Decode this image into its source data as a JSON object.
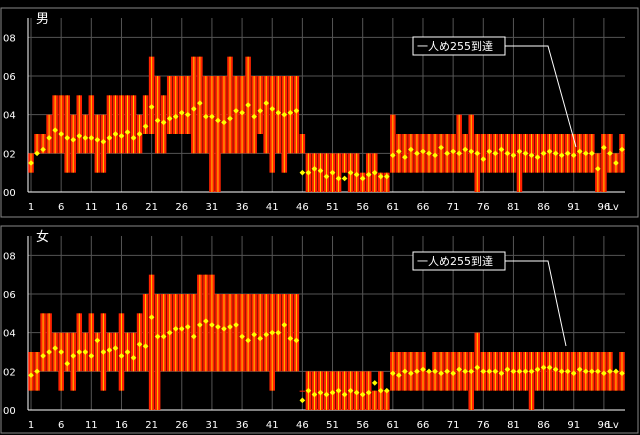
{
  "chart_data": [
    {
      "type": "bar",
      "title": "男",
      "annotation": "一人め255到達",
      "ylim": [
        0,
        0.9
      ],
      "ytick_labels": [
        "00",
        "02",
        "04",
        "06",
        "08"
      ],
      "yticks": [
        0,
        0.2,
        0.4,
        0.6,
        0.8
      ],
      "xtick_labels": [
        "1",
        "6",
        "11",
        "16",
        "21",
        "26",
        "31",
        "36",
        "41",
        "46",
        "51",
        "56",
        "61",
        "66",
        "71",
        "76",
        "81",
        "86",
        "91",
        "96",
        "Lv"
      ],
      "xlim": [
        1,
        99
      ],
      "grid": true,
      "low": [
        0.1,
        0.2,
        0.2,
        0.2,
        0.2,
        0.2,
        0.1,
        0.1,
        0.2,
        0.2,
        0.2,
        0.1,
        0.1,
        0.2,
        0.2,
        0.2,
        0.2,
        0.2,
        0.2,
        0.3,
        0.3,
        0.2,
        0.2,
        0.3,
        0.3,
        0.3,
        0.3,
        0.2,
        0.2,
        0.2,
        0,
        0,
        0.2,
        0.2,
        0.2,
        0.2,
        0.2,
        0.2,
        0.3,
        0.2,
        0.1,
        0.2,
        0.1,
        0.2,
        0.2,
        0.2,
        0,
        0,
        0,
        0,
        0,
        0,
        0.1,
        0,
        0,
        0,
        0,
        0,
        0,
        0,
        0.1,
        0.1,
        0.1,
        0.1,
        0.1,
        0.1,
        0.1,
        0.1,
        0.1,
        0.1,
        0.1,
        0.1,
        0.1,
        0.1,
        0,
        0.1,
        0.1,
        0.1,
        0.1,
        0.1,
        0.1,
        0,
        0.1,
        0.1,
        0.1,
        0.1,
        0.1,
        0.1,
        0.1,
        0.1,
        0.1,
        0.1,
        0.1,
        0.1,
        0,
        0,
        0.1,
        0.1,
        0.1
      ],
      "high": [
        0.2,
        0.3,
        0.3,
        0.4,
        0.5,
        0.5,
        0.5,
        0.4,
        0.5,
        0.4,
        0.5,
        0.4,
        0.4,
        0.5,
        0.5,
        0.5,
        0.5,
        0.5,
        0.4,
        0.5,
        0.7,
        0.6,
        0.5,
        0.6,
        0.6,
        0.6,
        0.6,
        0.7,
        0.7,
        0.6,
        0.6,
        0.6,
        0.6,
        0.7,
        0.6,
        0.6,
        0.7,
        0.6,
        0.6,
        0.6,
        0.6,
        0.6,
        0.6,
        0.6,
        0.6,
        0.3,
        0.2,
        0.2,
        0.2,
        0.2,
        0.2,
        0.2,
        0.2,
        0.2,
        0.2,
        0.1,
        0.2,
        0.2,
        0.1,
        0.1,
        0.4,
        0.3,
        0.3,
        0.3,
        0.3,
        0.3,
        0.3,
        0.3,
        0.3,
        0.3,
        0.3,
        0.4,
        0.3,
        0.4,
        0.3,
        0.3,
        0.3,
        0.3,
        0.3,
        0.3,
        0.3,
        0.3,
        0.3,
        0.3,
        0.3,
        0.3,
        0.3,
        0.3,
        0.3,
        0.3,
        0.3,
        0.3,
        0.3,
        0.3,
        0.2,
        0.3,
        0.3,
        0.2,
        0.3
      ],
      "mean": [
        0.15,
        0.2,
        0.22,
        0.28,
        0.32,
        0.3,
        0.28,
        0.27,
        0.29,
        0.28,
        0.28,
        0.27,
        0.26,
        0.28,
        0.3,
        0.29,
        0.31,
        0.28,
        0.3,
        0.34,
        0.44,
        0.37,
        0.36,
        0.38,
        0.39,
        0.41,
        0.4,
        0.43,
        0.46,
        0.39,
        0.39,
        0.37,
        0.36,
        0.38,
        0.42,
        0.41,
        0.45,
        0.39,
        0.42,
        0.46,
        0.43,
        0.41,
        0.4,
        0.41,
        0.42,
        0.1,
        0.1,
        0.12,
        0.11,
        0.08,
        0.1,
        0.07,
        0.07,
        0.1,
        0.09,
        0.07,
        0.09,
        0.1,
        0.08,
        0.08,
        0.19,
        0.21,
        0.18,
        0.22,
        0.2,
        0.21,
        0.2,
        0.19,
        0.23,
        0.2,
        0.21,
        0.2,
        0.22,
        0.21,
        0.2,
        0.17,
        0.21,
        0.2,
        0.22,
        0.2,
        0.19,
        0.21,
        0.2,
        0.19,
        0.18,
        0.2,
        0.21,
        0.2,
        0.19,
        0.2,
        0.19,
        0.21,
        0.2,
        0.2,
        0.12,
        0.23,
        0.2,
        0.15,
        0.22
      ]
    },
    {
      "type": "bar",
      "title": "女",
      "annotation": "一人め255到達",
      "ylim": [
        0,
        0.9
      ],
      "ytick_labels": [
        "00",
        "02",
        "04",
        "06",
        "08"
      ],
      "yticks": [
        0,
        0.2,
        0.4,
        0.6,
        0.8
      ],
      "xtick_labels": [
        "1",
        "6",
        "11",
        "16",
        "21",
        "26",
        "31",
        "36",
        "41",
        "46",
        "51",
        "56",
        "61",
        "66",
        "71",
        "76",
        "81",
        "86",
        "91",
        "96",
        "Lv"
      ],
      "xlim": [
        1,
        99
      ],
      "grid": true,
      "low": [
        0.1,
        0.1,
        0.2,
        0.2,
        0.2,
        0.1,
        0.2,
        0.1,
        0.2,
        0.2,
        0.2,
        0.2,
        0.1,
        0.2,
        0.2,
        0.1,
        0.2,
        0.2,
        0.2,
        0.2,
        0,
        0,
        0.2,
        0.2,
        0.2,
        0.2,
        0.2,
        0.2,
        0.2,
        0.2,
        0.2,
        0.2,
        0.2,
        0.2,
        0.2,
        0.2,
        0.2,
        0.2,
        0.2,
        0.2,
        0.1,
        0.2,
        0.2,
        0.2,
        0.2,
        0.1,
        0,
        0,
        0,
        0,
        0,
        0,
        0,
        0,
        0,
        0,
        0,
        0,
        0,
        0,
        0.1,
        0.1,
        0.1,
        0.1,
        0.1,
        0.1,
        0.1,
        0.1,
        0.1,
        0.1,
        0.1,
        0.1,
        0.1,
        0,
        0.1,
        0.1,
        0.1,
        0.1,
        0.1,
        0.1,
        0.1,
        0.1,
        0.1,
        0,
        0.1,
        0.1,
        0.1,
        0.1,
        0.1,
        0.1,
        0.1,
        0.1,
        0.1,
        0.1,
        0.1,
        0.1,
        0.1,
        0.1,
        0.1
      ],
      "high": [
        0.3,
        0.3,
        0.5,
        0.5,
        0.4,
        0.4,
        0.4,
        0.4,
        0.5,
        0.4,
        0.5,
        0.4,
        0.5,
        0.4,
        0.4,
        0.5,
        0.4,
        0.4,
        0.5,
        0.6,
        0.7,
        0.6,
        0.6,
        0.6,
        0.6,
        0.6,
        0.6,
        0.6,
        0.7,
        0.7,
        0.7,
        0.6,
        0.6,
        0.6,
        0.6,
        0.6,
        0.6,
        0.6,
        0.6,
        0.6,
        0.6,
        0.6,
        0.6,
        0.6,
        0.6,
        0.1,
        0.2,
        0.2,
        0.2,
        0.2,
        0.2,
        0.2,
        0.2,
        0.2,
        0.2,
        0.2,
        0.2,
        0.1,
        0.2,
        0.1,
        0.3,
        0.3,
        0.3,
        0.3,
        0.3,
        0.3,
        0.2,
        0.3,
        0.3,
        0.3,
        0.3,
        0.3,
        0.3,
        0.3,
        0.4,
        0.3,
        0.3,
        0.3,
        0.3,
        0.3,
        0.3,
        0.3,
        0.3,
        0.3,
        0.3,
        0.3,
        0.3,
        0.3,
        0.3,
        0.3,
        0.3,
        0.3,
        0.3,
        0.3,
        0.3,
        0.3,
        0.3,
        0.2,
        0.3
      ],
      "mean": [
        0.18,
        0.2,
        0.28,
        0.3,
        0.32,
        0.3,
        0.24,
        0.28,
        0.3,
        0.3,
        0.28,
        0.36,
        0.3,
        0.31,
        0.32,
        0.28,
        0.3,
        0.27,
        0.34,
        0.33,
        0.48,
        0.38,
        0.38,
        0.4,
        0.42,
        0.42,
        0.43,
        0.38,
        0.44,
        0.46,
        0.44,
        0.43,
        0.42,
        0.43,
        0.44,
        0.38,
        0.36,
        0.39,
        0.37,
        0.39,
        0.4,
        0.4,
        0.44,
        0.37,
        0.36,
        0.05,
        0.1,
        0.08,
        0.09,
        0.08,
        0.09,
        0.1,
        0.08,
        0.1,
        0.09,
        0.08,
        0.09,
        0.14,
        0.1,
        0.1,
        0.19,
        0.18,
        0.2,
        0.19,
        0.2,
        0.21,
        0.2,
        0.2,
        0.19,
        0.2,
        0.19,
        0.21,
        0.2,
        0.2,
        0.22,
        0.2,
        0.2,
        0.2,
        0.19,
        0.21,
        0.2,
        0.2,
        0.2,
        0.2,
        0.21,
        0.22,
        0.22,
        0.21,
        0.2,
        0.2,
        0.19,
        0.21,
        0.2,
        0.2,
        0.2,
        0.19,
        0.2,
        0.2,
        0.19
      ]
    }
  ],
  "colors": {
    "background": "#000000",
    "bar": "#ff2200",
    "bar_stripe": "#ffcc00",
    "mean_point": "#ffff00",
    "grid": "#555555",
    "axis": "#ffffff",
    "annotation_border": "#ffffff"
  }
}
